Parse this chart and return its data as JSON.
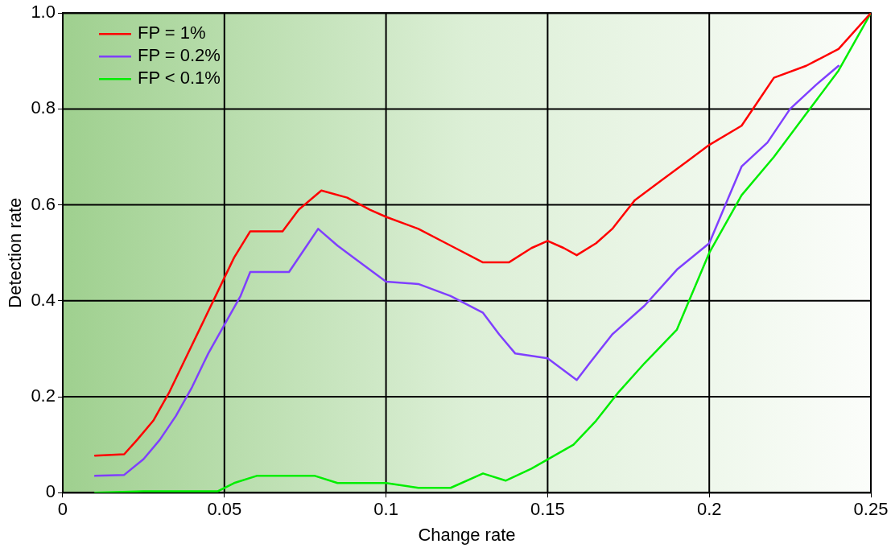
{
  "chart_data": {
    "type": "line",
    "xlabel": "Change rate",
    "ylabel": "Detection rate",
    "xlim": [
      0,
      0.25
    ],
    "xticks": [
      0,
      0.05,
      0.1,
      0.15,
      0.2,
      0.25
    ],
    "ylim": [
      0,
      1
    ],
    "yticks": [
      0,
      0.2,
      0.4,
      0.6,
      0.8,
      {
        "value": 1,
        "label": "1.0"
      }
    ],
    "grid": true,
    "legend": "top left",
    "marker": "none",
    "line_style": "solid",
    "series": [
      {
        "name": "FP = 1%",
        "color": "#ff0000",
        "x": [
          0.01,
          0.019,
          0.023,
          0.028,
          0.033,
          0.038,
          0.043,
          0.048,
          0.053,
          0.058,
          0.068,
          0.073,
          0.08,
          0.088,
          0.095,
          0.1,
          0.11,
          0.12,
          0.13,
          0.138,
          0.145,
          0.15,
          0.155,
          0.159,
          0.165,
          0.17,
          0.177,
          0.185,
          0.193,
          0.2,
          0.21,
          0.215,
          0.22,
          0.23,
          0.24,
          0.25
        ],
        "values": [
          0.077,
          0.08,
          0.11,
          0.15,
          0.21,
          0.28,
          0.35,
          0.42,
          0.49,
          0.545,
          0.545,
          0.59,
          0.63,
          0.615,
          0.59,
          0.575,
          0.55,
          0.515,
          0.48,
          0.48,
          0.51,
          0.525,
          0.51,
          0.495,
          0.52,
          0.55,
          0.61,
          0.65,
          0.69,
          0.725,
          0.765,
          0.815,
          0.865,
          0.89,
          0.925,
          1.0
        ]
      },
      {
        "name": "FP = 0.2%",
        "color": "#7f3fff",
        "x": [
          0.01,
          0.019,
          0.025,
          0.03,
          0.035,
          0.04,
          0.045,
          0.05,
          0.055,
          0.058,
          0.07,
          0.075,
          0.079,
          0.085,
          0.09,
          0.1,
          0.11,
          0.12,
          0.13,
          0.135,
          0.14,
          0.15,
          0.155,
          0.159,
          0.163,
          0.17,
          0.18,
          0.19,
          0.2,
          0.205,
          0.21,
          0.218,
          0.225,
          0.233,
          0.24
        ],
        "values": [
          0.035,
          0.037,
          0.07,
          0.11,
          0.16,
          0.22,
          0.29,
          0.35,
          0.41,
          0.46,
          0.46,
          0.51,
          0.55,
          0.515,
          0.49,
          0.44,
          0.435,
          0.41,
          0.375,
          0.33,
          0.29,
          0.28,
          0.255,
          0.235,
          0.27,
          0.33,
          0.39,
          0.465,
          0.52,
          0.6,
          0.68,
          0.73,
          0.8,
          0.85,
          0.89
        ]
      },
      {
        "name": "FP < 0.1%",
        "color": "#00ee00",
        "x": [
          0.01,
          0.025,
          0.048,
          0.053,
          0.06,
          0.078,
          0.085,
          0.1,
          0.11,
          0.12,
          0.13,
          0.137,
          0.145,
          0.158,
          0.165,
          0.172,
          0.18,
          0.19,
          0.2,
          0.21,
          0.22,
          0.23,
          0.24,
          0.25
        ],
        "values": [
          0,
          0.003,
          0.003,
          0.02,
          0.035,
          0.035,
          0.02,
          0.02,
          0.01,
          0.01,
          0.04,
          0.025,
          0.05,
          0.1,
          0.15,
          0.21,
          0.27,
          0.34,
          0.5,
          0.62,
          0.7,
          0.79,
          0.88,
          1.0
        ]
      }
    ]
  }
}
